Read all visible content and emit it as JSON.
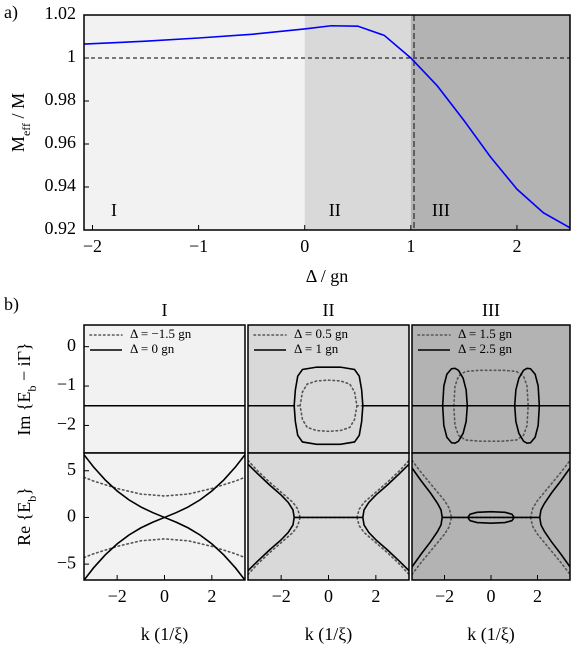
{
  "panel_labels": [
    "a)",
    "b)"
  ],
  "chart_data": [
    {
      "type": "line",
      "xlabel": "Δ / gn",
      "ylabel": [
        "M",
        "eff",
        " / M"
      ],
      "xlim": [
        -2.08,
        2.5
      ],
      "ylim": [
        0.92,
        1.02
      ],
      "xticks": [
        {
          "value": -2,
          "label": "−2"
        },
        {
          "value": -1,
          "label": "−1"
        },
        0,
        1,
        2
      ],
      "yticks": [
        0.92,
        0.94,
        0.96,
        0.98,
        1,
        1.02
      ],
      "regions": [
        0,
        1
      ],
      "region_colors": [
        "#f2f2f2",
        "#d9d9d9",
        "#b3b3b3"
      ],
      "region_labels": [
        "I",
        "II",
        "III"
      ],
      "hline": 1,
      "vline": 1.03,
      "series": [
        {
          "color": "#0000ff",
          "style": "solid",
          "x": [
            -2.08,
            -1.5,
            -1,
            -0.5,
            0,
            0.25,
            0.5,
            0.75,
            1,
            1.25,
            1.5,
            1.75,
            2,
            2.25,
            2.5
          ],
          "values": [
            1.0065,
            1.0078,
            1.0093,
            1.011,
            1.0135,
            1.015,
            1.0148,
            1.0105,
            1.0,
            0.987,
            0.971,
            0.954,
            0.939,
            0.928,
            0.921
          ]
        }
      ]
    },
    {
      "type": "line",
      "title": "I",
      "ylabel": [
        "Im {E",
        "b",
        " − iΓ}"
      ],
      "background": "#f2f2f2",
      "xlim": [
        -3.4,
        3.4
      ],
      "ylim": [
        -2.7,
        0.55
      ],
      "yticks": [
        0,
        {
          "value": -1,
          "label": "−1"
        },
        {
          "value": -2,
          "label": "−2"
        }
      ],
      "series": [
        {
          "name": "Δ = −1.5 gn",
          "color": "#555555",
          "style": "dotted",
          "x": [
            -3.4,
            3.4
          ],
          "values": [
            -1.5,
            -1.5
          ]
        },
        {
          "name": "Δ = 0 gn",
          "color": "#000000",
          "style": "solid",
          "x": [
            -3.4,
            3.4
          ],
          "values": [
            -1.5,
            -1.5
          ]
        }
      ]
    },
    {
      "type": "line",
      "xlabel": "k (1/ξ)",
      "ylabel": [
        "Re {E",
        "b",
        "}"
      ],
      "background": "#f2f2f2",
      "xlim": [
        -3.4,
        3.4
      ],
      "ylim": [
        -6.7,
        6.9
      ],
      "xticks": [
        {
          "value": -2,
          "label": "−2"
        },
        0,
        2
      ],
      "yticks": [
        5,
        0,
        {
          "value": -5,
          "label": "−5"
        }
      ],
      "series": [
        {
          "color": "#555555",
          "style": "dotted",
          "x": [
            -3.4,
            -3,
            -2,
            -1,
            0,
            1,
            2,
            3,
            3.4,
            null,
            -3.4,
            -3,
            -2,
            -1,
            0,
            1,
            2,
            3,
            3.4
          ],
          "values": [
            4.3,
            3.9,
            3.1,
            2.5,
            2.3,
            2.5,
            3.1,
            3.9,
            4.3,
            null,
            -4.3,
            -3.9,
            -3.1,
            -2.5,
            -2.3,
            -2.5,
            -3.1,
            -3.9,
            -4.3
          ]
        },
        {
          "color": "#000000",
          "style": "solid",
          "x": [
            -3.4,
            -3,
            -2.5,
            -2,
            -1.5,
            -1,
            -0.5,
            0,
            0.5,
            1,
            1.5,
            2,
            2.5,
            3,
            3.4,
            null,
            -3.4,
            -3,
            -2.5,
            -2,
            -1.5,
            -1,
            -0.5,
            0,
            0.5,
            1,
            1.5,
            2,
            2.5,
            3,
            3.4
          ],
          "values": [
            6.72,
            5.41,
            4.0,
            2.83,
            1.88,
            1.12,
            0.52,
            0,
            0.52,
            1.12,
            1.88,
            2.83,
            4.0,
            5.41,
            6.72,
            null,
            -6.72,
            -5.41,
            -4.0,
            -2.83,
            -1.88,
            -1.12,
            -0.52,
            0,
            -0.52,
            -1.12,
            -1.88,
            -2.83,
            -4.0,
            -5.41,
            -6.72
          ]
        }
      ]
    },
    {
      "type": "line",
      "title": "II",
      "background": "#d9d9d9",
      "xlim": [
        -3.4,
        3.4
      ],
      "ylim": [
        -2.7,
        0.55
      ],
      "series": [
        {
          "name": "Δ = 0.5 gn",
          "color": "#555555",
          "style": "dotted",
          "x": [
            -3.4,
            -1.2,
            null,
            -1.2,
            -1.1,
            -0.9,
            -0.5,
            0,
            0.5,
            0.9,
            1.1,
            1.2,
            1.1,
            0.9,
            0.5,
            0,
            -0.5,
            -0.9,
            -1.1,
            -1.2,
            null,
            1.2,
            3.4
          ],
          "values": [
            -1.5,
            -1.5,
            null,
            -1.5,
            -1.15,
            -0.95,
            -0.87,
            -0.85,
            -0.87,
            -0.95,
            -1.15,
            -1.5,
            -1.85,
            -2.05,
            -2.13,
            -2.15,
            -2.13,
            -2.05,
            -1.85,
            -1.5,
            null,
            -1.5,
            -1.5
          ]
        },
        {
          "name": "Δ = 1 gn",
          "color": "#000000",
          "style": "solid",
          "x": [
            -3.4,
            -1.45,
            null,
            -1.45,
            -1.4,
            -1.3,
            -1.1,
            -0.5,
            0,
            0.5,
            1.1,
            1.3,
            1.4,
            1.45,
            1.4,
            1.3,
            1.1,
            0.5,
            0,
            -0.5,
            -1.1,
            -1.3,
            -1.4,
            -1.45,
            null,
            1.45,
            3.4
          ],
          "values": [
            -1.5,
            -1.5,
            null,
            -1.5,
            -1.1,
            -0.75,
            -0.58,
            -0.52,
            -0.52,
            -0.52,
            -0.58,
            -0.75,
            -1.1,
            -1.5,
            -1.9,
            -2.25,
            -2.42,
            -2.48,
            -2.48,
            -2.48,
            -2.42,
            -2.25,
            -1.9,
            -1.5,
            null,
            -1.5,
            -1.5
          ]
        }
      ]
    },
    {
      "type": "line",
      "xlabel": "k (1/ξ)",
      "background": "#d9d9d9",
      "xlim": [
        -3.4,
        3.4
      ],
      "ylim": [
        -6.7,
        6.9
      ],
      "xticks": [
        {
          "value": -2,
          "label": "−2"
        },
        0,
        2
      ],
      "series": [
        {
          "color": "#555555",
          "style": "dotted",
          "x": [
            -3.4,
            -3,
            -2.5,
            -2,
            -1.5,
            -1.3,
            -1.2,
            1.2,
            1.3,
            1.5,
            2,
            2.5,
            3,
            3.4,
            null,
            -3.4,
            -3,
            -2.5,
            -2,
            -1.5,
            -1.3,
            -1.2,
            null,
            1.2,
            1.3,
            1.5,
            2,
            2.5,
            3,
            3.4
          ],
          "values": [
            6.1,
            5.0,
            3.8,
            2.7,
            1.6,
            0.9,
            0,
            0,
            0.9,
            1.6,
            2.7,
            3.8,
            5.0,
            6.1,
            null,
            -6.1,
            -5.0,
            -3.8,
            -2.7,
            -1.6,
            -0.9,
            0,
            null,
            0,
            -0.9,
            -1.6,
            -2.7,
            -3.8,
            -5.0,
            -6.1
          ]
        },
        {
          "color": "#000000",
          "style": "solid",
          "x": [
            -3.4,
            -3,
            -2.5,
            -2,
            -1.7,
            -1.5,
            -1.45,
            1.45,
            1.5,
            1.7,
            2,
            2.5,
            3,
            3.4,
            null,
            -3.4,
            -3,
            -2.5,
            -2,
            -1.7,
            -1.5,
            -1.45,
            null,
            1.45,
            1.5,
            1.7,
            2,
            2.5,
            3,
            3.4
          ],
          "values": [
            5.7,
            4.7,
            3.5,
            2.4,
            1.6,
            0.8,
            0,
            0,
            0.8,
            1.6,
            2.4,
            3.5,
            4.7,
            5.7,
            null,
            -5.7,
            -4.7,
            -3.5,
            -2.4,
            -1.6,
            -0.8,
            0,
            null,
            0,
            -0.8,
            -1.6,
            -2.4,
            -3.5,
            -4.7,
            -5.7
          ]
        }
      ]
    },
    {
      "type": "line",
      "title": "III",
      "background": "#b3b3b3",
      "xlim": [
        -3.4,
        3.4
      ],
      "ylim": [
        -2.7,
        0.55
      ],
      "series": [
        {
          "name": "Δ = 1.5 gn",
          "color": "#555555",
          "style": "dotted",
          "x": [
            -3.4,
            -1.6,
            null,
            -1.6,
            -1.55,
            -1.4,
            -1.1,
            -0.5,
            0,
            0.5,
            1.1,
            1.4,
            1.55,
            1.6,
            1.55,
            1.4,
            1.1,
            0.5,
            0,
            -0.5,
            -1.1,
            -1.4,
            -1.55,
            -1.6,
            null,
            1.6,
            3.4
          ],
          "values": [
            -1.5,
            -1.5,
            null,
            -1.5,
            -1.0,
            -0.75,
            -0.63,
            -0.6,
            -0.6,
            -0.6,
            -0.63,
            -0.75,
            -1.0,
            -1.5,
            -2.0,
            -2.25,
            -2.37,
            -2.4,
            -2.4,
            -2.4,
            -2.37,
            -2.25,
            -2.0,
            -1.5,
            null,
            -1.5,
            -1.5
          ]
        },
        {
          "name": "Δ = 2.5 gn",
          "color": "#000000",
          "style": "solid",
          "x": [
            -3.4,
            3.4,
            null,
            -2.08,
            -2.03,
            -1.9,
            -1.7,
            -1.55,
            -1.4,
            -1.2,
            -1.07,
            -1.02,
            -1.07,
            -1.2,
            -1.4,
            -1.55,
            -1.7,
            -1.9,
            -2.03,
            -2.08,
            null,
            1.02,
            1.07,
            1.2,
            1.4,
            1.55,
            1.7,
            1.9,
            2.03,
            2.08,
            2.03,
            1.9,
            1.7,
            1.55,
            1.4,
            1.2,
            1.07,
            1.02
          ],
          "values": [
            -1.5,
            -1.5,
            null,
            -1.5,
            -1.0,
            -0.7,
            -0.56,
            -0.55,
            -0.6,
            -0.8,
            -1.1,
            -1.5,
            -1.9,
            -2.2,
            -2.4,
            -2.45,
            -2.44,
            -2.3,
            -2.0,
            -1.5,
            null,
            -1.5,
            -1.1,
            -0.8,
            -0.6,
            -0.55,
            -0.56,
            -0.7,
            -1.0,
            -1.5,
            -2.0,
            -2.3,
            -2.44,
            -2.45,
            -2.4,
            -2.2,
            -1.9,
            -1.5
          ]
        }
      ]
    },
    {
      "type": "line",
      "xlabel": "k (1/ξ)",
      "background": "#b3b3b3",
      "xlim": [
        -3.4,
        3.4
      ],
      "ylim": [
        -6.7,
        6.9
      ],
      "xticks": [
        {
          "value": -2,
          "label": "−2"
        },
        0,
        2
      ],
      "series": [
        {
          "color": "#555555",
          "style": "dotted",
          "x": [
            -3.4,
            -3,
            -2.5,
            -2,
            -1.8,
            -1.7,
            1.7,
            1.8,
            2,
            2.5,
            3,
            3.4,
            null,
            -3.4,
            -3,
            -2.5,
            -2,
            -1.8,
            -1.7,
            null,
            1.7,
            1.8,
            2,
            2.5,
            3,
            3.4
          ],
          "values": [
            6.1,
            4.8,
            3.3,
            1.8,
            1.0,
            0,
            0,
            1.0,
            1.8,
            3.3,
            4.8,
            6.1,
            null,
            -6.1,
            -4.8,
            -3.3,
            -1.8,
            -1.0,
            0,
            null,
            0,
            -1.0,
            -1.8,
            -3.3,
            -4.8,
            -6.1
          ]
        },
        {
          "color": "#000000",
          "style": "solid",
          "x": [
            -3.4,
            -3,
            -2.6,
            -2.3,
            -2.15,
            -2.1,
            2.1,
            2.15,
            2.3,
            2.6,
            3,
            3.4,
            null,
            -3.4,
            -3,
            -2.6,
            -2.3,
            -2.15,
            -2.1,
            null,
            2.1,
            2.15,
            2.3,
            2.6,
            3,
            3.4,
            null,
            -1,
            -0.9,
            -0.6,
            0,
            0.6,
            0.9,
            1,
            0.9,
            0.6,
            0,
            -0.6,
            -0.9,
            -1
          ],
          "values": [
            5.3,
            3.9,
            2.6,
            1.5,
            0.8,
            0,
            0,
            0.8,
            1.5,
            2.6,
            3.9,
            5.3,
            null,
            -5.3,
            -3.9,
            -2.6,
            -1.5,
            -0.8,
            0,
            null,
            0,
            -0.8,
            -1.5,
            -2.6,
            -3.9,
            -5.3,
            null,
            0,
            0.35,
            0.55,
            0.62,
            0.55,
            0.35,
            0,
            -0.35,
            -0.55,
            -0.62,
            -0.55,
            -0.35,
            0
          ]
        }
      ]
    }
  ]
}
